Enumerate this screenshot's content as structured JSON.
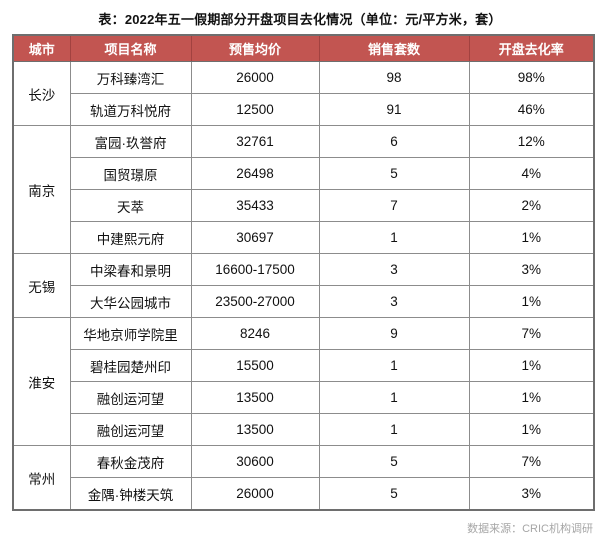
{
  "chart_data": {
    "type": "table",
    "title": "表：2022年五一假期部分开盘项目去化情况（单位：元/平方米，套）",
    "columns": [
      "城市",
      "项目名称",
      "预售均价",
      "销售套数",
      "开盘去化率"
    ],
    "groups": [
      {
        "city": "长沙",
        "rows": [
          [
            "万科臻湾汇",
            "26000",
            "98",
            "98%"
          ],
          [
            "轨道万科悦府",
            "12500",
            "91",
            "46%"
          ]
        ]
      },
      {
        "city": "南京",
        "rows": [
          [
            "富园·玖誉府",
            "32761",
            "6",
            "12%"
          ],
          [
            "国贸璟原",
            "26498",
            "5",
            "4%"
          ],
          [
            "天萃",
            "35433",
            "7",
            "2%"
          ],
          [
            "中建熙元府",
            "30697",
            "1",
            "1%"
          ]
        ]
      },
      {
        "city": "无锡",
        "rows": [
          [
            "中梁春和景明",
            "16600-17500",
            "3",
            "3%"
          ],
          [
            "大华公园城市",
            "23500-27000",
            "3",
            "1%"
          ]
        ]
      },
      {
        "city": "淮安",
        "rows": [
          [
            "华地京师学院里",
            "8246",
            "9",
            "7%"
          ],
          [
            "碧桂园楚州印",
            "15500",
            "1",
            "1%"
          ],
          [
            "融创运河望",
            "13500",
            "1",
            "1%"
          ],
          [
            "融创运河望",
            "13500",
            "1",
            "1%"
          ]
        ]
      },
      {
        "city": "常州",
        "rows": [
          [
            "春秋金茂府",
            "30600",
            "5",
            "7%"
          ],
          [
            "金隅·钟楼天筑",
            "26000",
            "5",
            "3%"
          ]
        ]
      }
    ],
    "source": "数据来源：CRIC机构调研"
  },
  "colors": {
    "header_bg": "#c25551",
    "header_text": "#ffffff",
    "header_sep": "#a24240",
    "outer_border": "#6e6e6e",
    "grid_border": "#8c8c8c",
    "source_text": "#a6a6a6"
  }
}
